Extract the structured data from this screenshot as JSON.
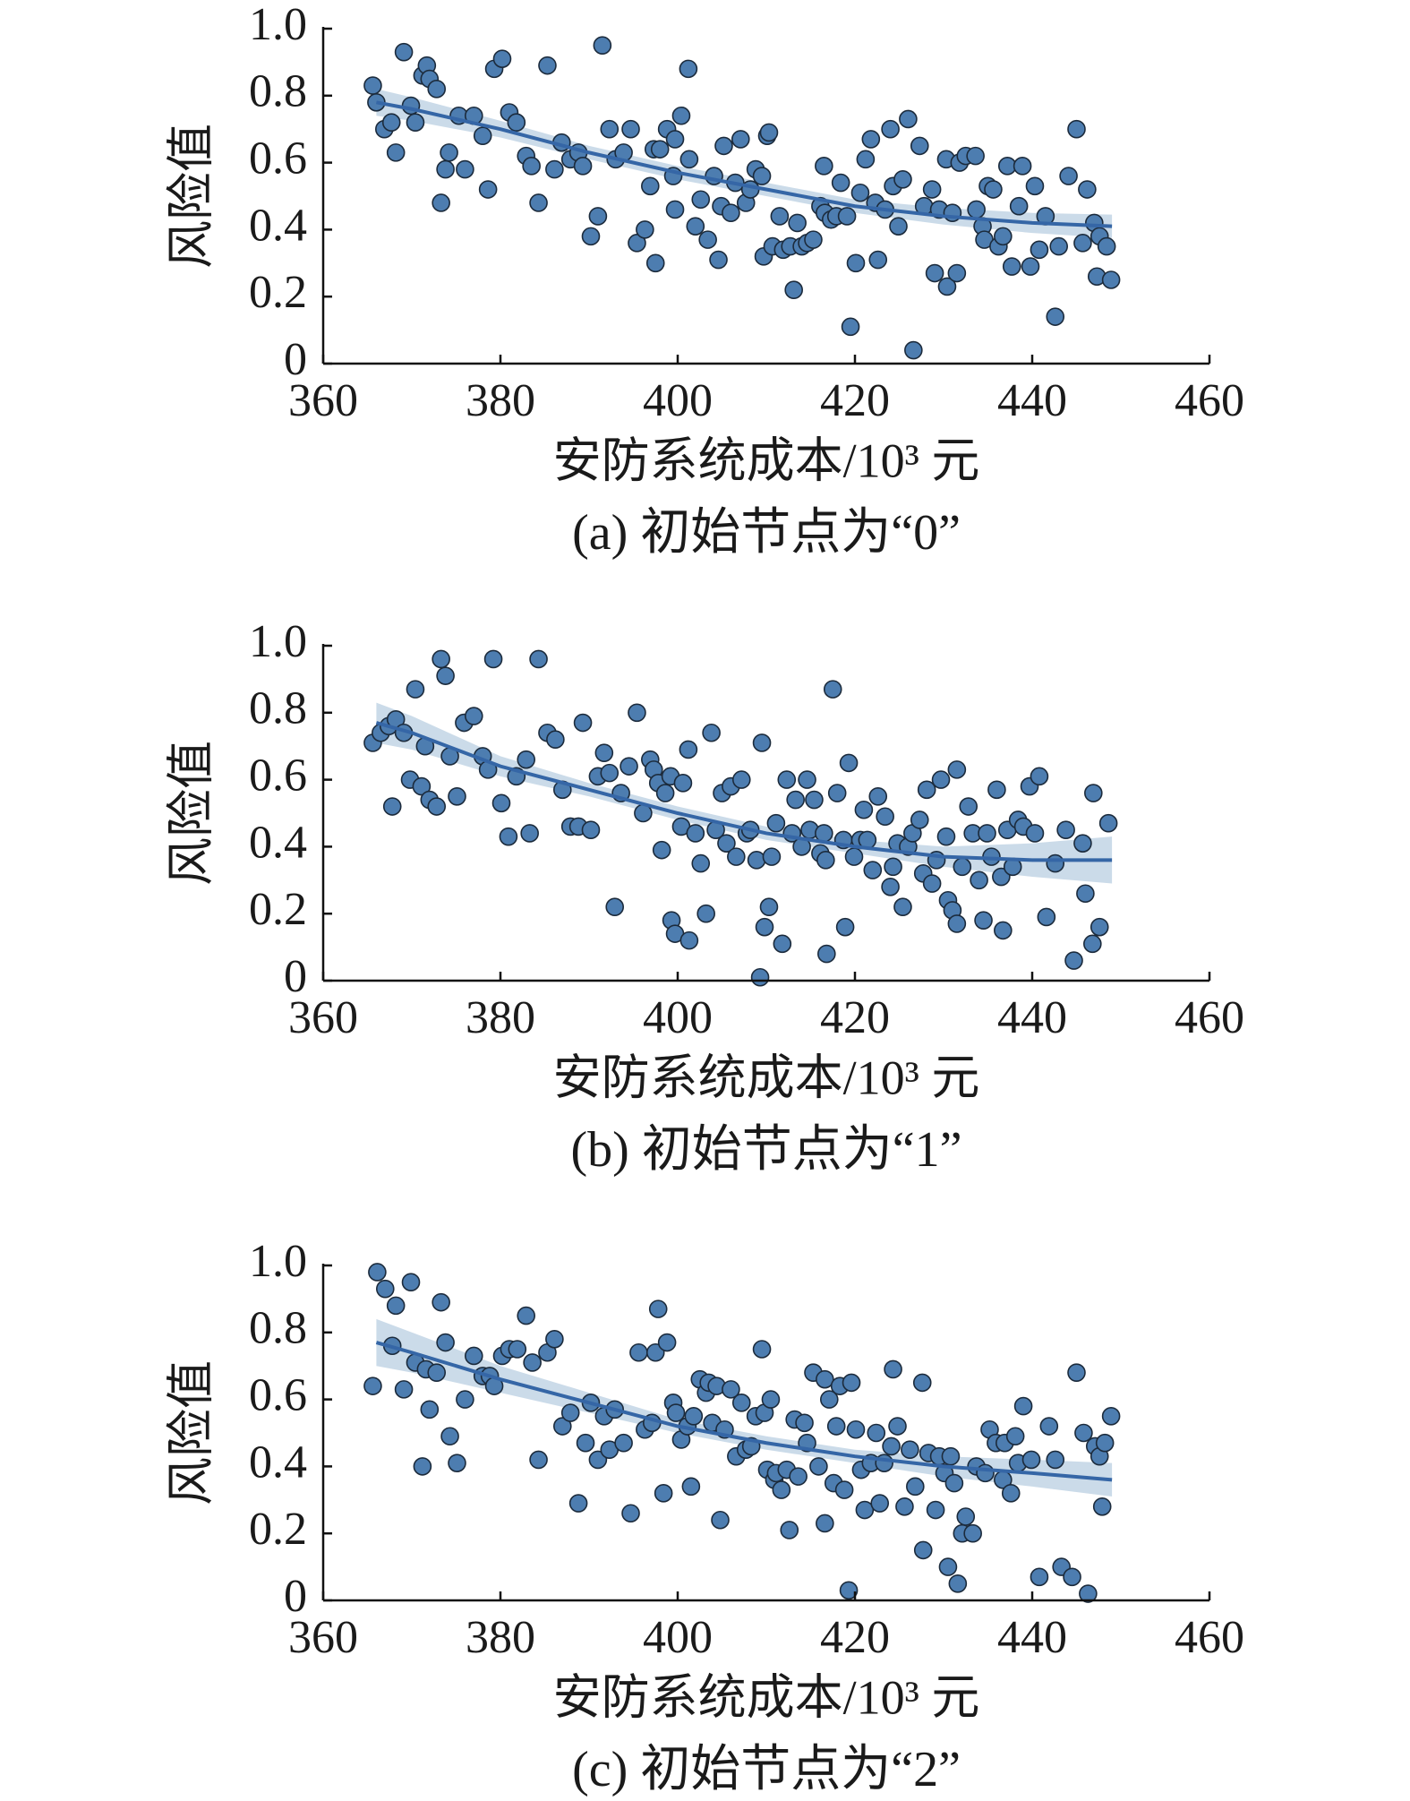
{
  "chart_data": [
    {
      "type": "scatter",
      "title": "(a) 初始节点为“0”",
      "xlabel": "安防系统成本/10³ 元",
      "ylabel": "风险值",
      "xlim": [
        360,
        460
      ],
      "ylim": [
        0,
        1
      ],
      "xticks": [
        360,
        380,
        400,
        420,
        440,
        460
      ],
      "yticks": [
        0,
        0.2,
        0.4,
        0.6,
        0.8,
        {
          "value": 1,
          "label": "1.0"
        }
      ],
      "color": "#4d7db0",
      "line_color": "#3566a6",
      "band_color": "#b9cfe2",
      "x": [
        365.6,
        366,
        366.9,
        367.7,
        368.2,
        369.1,
        369.9,
        370.4,
        371.2,
        371.7,
        372,
        372.8,
        373.3,
        373.8,
        374.2,
        375.3,
        376,
        377,
        378,
        378.6,
        379.3,
        380.2,
        381,
        381.8,
        382.9,
        383.5,
        384.3,
        385.3,
        386.1,
        386.9,
        387.9,
        388.8,
        389.3,
        390.2,
        391,
        391.5,
        392.3,
        393,
        393.9,
        394.7,
        395.4,
        396.3,
        396.9,
        397.3,
        397.5,
        398,
        398.8,
        399.5,
        399.7,
        400.4,
        399.7,
        401.2,
        401.3,
        402,
        402.6,
        403.4,
        404.1,
        404.6,
        404.9,
        405.2,
        406,
        406.5,
        407.1,
        407.7,
        408.2,
        408.8,
        409.5,
        409.7,
        410.1,
        410.7,
        410.3,
        411.5,
        411.9,
        412.7,
        413.1,
        413.5,
        414,
        414.6,
        415.3,
        416.1,
        416.5,
        416.6,
        417.3,
        417.9,
        418.4,
        419.1,
        419.5,
        420.1,
        420.6,
        421.2,
        421.8,
        422.3,
        422.6,
        423.4,
        424,
        424.3,
        424.9,
        425.4,
        426,
        426.6,
        427.3,
        427.8,
        428.7,
        429,
        429.5,
        430.3,
        430.4,
        431,
        431.5,
        431.8,
        432.5,
        433.6,
        433.7,
        434.4,
        434.6,
        435,
        435.6,
        436.2,
        436.7,
        437.2,
        437.7,
        438.5,
        438.9,
        439.8,
        440.3,
        440.8,
        441.5,
        442.6,
        443,
        444.1,
        445,
        445.7,
        446.2,
        447,
        447.3,
        447.6,
        448.4,
        448.9
      ],
      "y": [
        0.83,
        0.78,
        0.7,
        0.72,
        0.63,
        0.93,
        0.77,
        0.72,
        0.86,
        0.89,
        0.85,
        0.82,
        0.48,
        0.58,
        0.63,
        0.74,
        0.58,
        0.74,
        0.68,
        0.52,
        0.88,
        0.91,
        0.75,
        0.72,
        0.62,
        0.59,
        0.48,
        0.89,
        0.58,
        0.66,
        0.61,
        0.63,
        0.59,
        0.38,
        0.44,
        0.95,
        0.7,
        0.61,
        0.63,
        0.7,
        0.36,
        0.4,
        0.53,
        0.64,
        0.3,
        0.64,
        0.7,
        0.56,
        0.67,
        0.74,
        0.46,
        0.88,
        0.61,
        0.41,
        0.49,
        0.37,
        0.56,
        0.31,
        0.47,
        0.65,
        0.45,
        0.54,
        0.67,
        0.48,
        0.52,
        0.58,
        0.56,
        0.32,
        0.68,
        0.35,
        0.69,
        0.44,
        0.34,
        0.35,
        0.22,
        0.42,
        0.35,
        0.36,
        0.37,
        0.47,
        0.59,
        0.45,
        0.43,
        0.44,
        0.54,
        0.44,
        0.11,
        0.3,
        0.51,
        0.61,
        0.67,
        0.48,
        0.31,
        0.46,
        0.7,
        0.53,
        0.41,
        0.55,
        0.73,
        0.04,
        0.65,
        0.47,
        0.52,
        0.27,
        0.46,
        0.61,
        0.23,
        0.45,
        0.27,
        0.6,
        0.62,
        0.62,
        0.46,
        0.41,
        0.37,
        0.53,
        0.52,
        0.35,
        0.38,
        0.59,
        0.29,
        0.47,
        0.59,
        0.29,
        0.53,
        0.34,
        0.44,
        0.14,
        0.35,
        0.56,
        0.7,
        0.36,
        0.52,
        0.42,
        0.26,
        0.38,
        0.35,
        0.25
      ],
      "fit": {
        "x": [
          366,
          370,
          380,
          390,
          400,
          410,
          420,
          430,
          440,
          449
        ],
        "y": [
          0.78,
          0.76,
          0.7,
          0.63,
          0.57,
          0.52,
          0.47,
          0.44,
          0.42,
          0.41
        ],
        "upper": [
          0.82,
          0.795,
          0.725,
          0.65,
          0.59,
          0.54,
          0.49,
          0.465,
          0.45,
          0.445
        ],
        "lower": [
          0.74,
          0.725,
          0.675,
          0.61,
          0.55,
          0.5,
          0.45,
          0.415,
          0.39,
          0.375
        ]
      }
    },
    {
      "type": "scatter",
      "title": "(b) 初始节点为“1”",
      "xlabel": "安防系统成本/10³ 元",
      "ylabel": "风险值",
      "xlim": [
        360,
        460
      ],
      "ylim": [
        0,
        1
      ],
      "xticks": [
        360,
        380,
        400,
        420,
        440,
        460
      ],
      "yticks": [
        0,
        0.2,
        0.4,
        0.6,
        0.8,
        {
          "value": 1,
          "label": "1.0"
        }
      ],
      "color": "#4d7db0",
      "line_color": "#3566a6",
      "band_color": "#b9cfe2",
      "x": [
        365.6,
        366.5,
        367.4,
        367.8,
        368.2,
        369.1,
        369.8,
        370.4,
        371.1,
        371.5,
        372,
        372.8,
        373.3,
        373.8,
        374.3,
        375.1,
        375.9,
        377,
        378,
        378.6,
        379.2,
        380.1,
        380.9,
        381.8,
        382.9,
        383.3,
        384.3,
        385.3,
        386.2,
        387,
        387.9,
        388.8,
        389.3,
        390.2,
        391,
        391.7,
        392.3,
        392.9,
        393.6,
        394.5,
        395.4,
        396.1,
        396.9,
        397.3,
        397.8,
        398.2,
        398.6,
        399.2,
        399.3,
        399.7,
        400.4,
        400.6,
        401.2,
        401.3,
        402,
        402.6,
        403.2,
        403.8,
        404.3,
        405,
        405.5,
        406,
        406.6,
        407.2,
        407.8,
        408.2,
        408.9,
        409.3,
        409.5,
        409.8,
        410.3,
        410.6,
        411.1,
        411.8,
        412.3,
        412.9,
        413.3,
        414,
        414.6,
        414.9,
        415.4,
        416.1,
        416.5,
        416.8,
        416.7,
        417.5,
        418,
        418.7,
        418.9,
        419.3,
        419.9,
        420.6,
        421,
        421.4,
        422,
        422.6,
        423.4,
        424,
        424.3,
        424.8,
        425.4,
        426,
        426.5,
        427.3,
        427.7,
        428.1,
        428.7,
        429.2,
        429.7,
        430.3,
        430.5,
        431,
        431.5,
        431.5,
        432.1,
        432.8,
        433.3,
        434,
        434.5,
        434.9,
        435.4,
        436,
        436.5,
        436.7,
        437.2,
        437.8,
        438.4,
        439,
        439.7,
        440.3,
        440.8,
        441.6,
        442.6,
        443.8,
        444.7,
        445.7,
        446,
        446.8,
        446.9,
        447.6,
        448.6
      ],
      "y": [
        0.71,
        0.74,
        0.76,
        0.52,
        0.78,
        0.74,
        0.6,
        0.87,
        0.58,
        0.7,
        0.54,
        0.52,
        0.96,
        0.91,
        0.67,
        0.55,
        0.77,
        0.79,
        0.67,
        0.63,
        0.96,
        0.53,
        0.43,
        0.61,
        0.66,
        0.44,
        0.96,
        0.74,
        0.72,
        0.57,
        0.46,
        0.46,
        0.77,
        0.45,
        0.61,
        0.68,
        0.62,
        0.22,
        0.56,
        0.64,
        0.8,
        0.5,
        0.66,
        0.63,
        0.59,
        0.39,
        0.56,
        0.61,
        0.18,
        0.14,
        0.46,
        0.59,
        0.69,
        0.12,
        0.44,
        0.35,
        0.2,
        0.74,
        0.45,
        0.56,
        0.41,
        0.58,
        0.37,
        0.6,
        0.44,
        0.45,
        0.36,
        0.01,
        0.71,
        0.16,
        0.22,
        0.37,
        0.47,
        0.11,
        0.6,
        0.44,
        0.54,
        0.4,
        0.6,
        0.45,
        0.54,
        0.38,
        0.44,
        0.08,
        0.36,
        0.87,
        0.56,
        0.42,
        0.16,
        0.65,
        0.37,
        0.42,
        0.51,
        0.42,
        0.33,
        0.55,
        0.49,
        0.28,
        0.34,
        0.41,
        0.22,
        0.4,
        0.44,
        0.48,
        0.32,
        0.57,
        0.29,
        0.36,
        0.6,
        0.43,
        0.24,
        0.21,
        0.63,
        0.17,
        0.34,
        0.52,
        0.44,
        0.3,
        0.18,
        0.44,
        0.37,
        0.57,
        0.31,
        0.15,
        0.45,
        0.34,
        0.48,
        0.46,
        0.58,
        0.44,
        0.61,
        0.19,
        0.35,
        0.45,
        0.06,
        0.41,
        0.26,
        0.11,
        0.56,
        0.16,
        0.47
      ],
      "fit": {
        "x": [
          366,
          370,
          380,
          390,
          400,
          410,
          420,
          430,
          440,
          449
        ],
        "y": [
          0.77,
          0.74,
          0.64,
          0.57,
          0.5,
          0.44,
          0.4,
          0.37,
          0.36,
          0.36
        ],
        "upper": [
          0.83,
          0.79,
          0.67,
          0.59,
          0.52,
          0.46,
          0.42,
          0.4,
          0.41,
          0.43
        ],
        "lower": [
          0.71,
          0.69,
          0.61,
          0.55,
          0.48,
          0.42,
          0.38,
          0.34,
          0.31,
          0.29
        ]
      }
    },
    {
      "type": "scatter",
      "title": "(c) 初始节点为“2”",
      "xlabel": "安防系统成本/10³ 元",
      "ylabel": "风险值",
      "xlim": [
        360,
        460
      ],
      "ylim": [
        0,
        1
      ],
      "xticks": [
        360,
        380,
        400,
        420,
        440,
        460
      ],
      "yticks": [
        0,
        0.2,
        0.4,
        0.6,
        0.8,
        {
          "value": 1,
          "label": "1.0"
        }
      ],
      "color": "#4d7db0",
      "line_color": "#3566a6",
      "band_color": "#b9cfe2",
      "x": [
        365.6,
        366.1,
        367,
        367.8,
        368.2,
        369.1,
        369.9,
        370.4,
        371.2,
        371.6,
        372,
        372.8,
        373.3,
        373.8,
        374.3,
        375.1,
        376,
        377,
        378,
        378.8,
        379.3,
        380.2,
        381,
        381.9,
        382.9,
        383.6,
        384.3,
        385.3,
        386.1,
        387,
        387.9,
        388.8,
        389.6,
        390.2,
        391,
        391.7,
        392.3,
        392.9,
        393.9,
        394.7,
        395.6,
        396.3,
        397.1,
        397.5,
        397.8,
        398.4,
        398.8,
        399.5,
        399.8,
        400.4,
        401.1,
        401.5,
        401.8,
        402.5,
        403.2,
        403.5,
        403.9,
        404.4,
        404.8,
        405.3,
        406,
        406.6,
        407.2,
        407.7,
        408.3,
        408.8,
        409.5,
        409.8,
        410.1,
        410.5,
        410.9,
        411.1,
        411.7,
        412.3,
        412.6,
        413.2,
        413.6,
        414.3,
        414.6,
        415.3,
        415.9,
        416.6,
        416.6,
        417.1,
        417.6,
        417.9,
        418.3,
        418.8,
        419.3,
        419.6,
        420.1,
        420.7,
        421.1,
        421.8,
        422.4,
        422.8,
        423.3,
        424.1,
        424.3,
        424.8,
        425.6,
        426.2,
        426.8,
        427.6,
        427.7,
        428.3,
        429.1,
        429.5,
        430.1,
        430.5,
        430.8,
        431.2,
        431.6,
        432.1,
        432.5,
        433.3,
        433.7,
        434.7,
        435.2,
        435.9,
        436.7,
        436.9,
        437.6,
        438.1,
        438.4,
        439,
        439.9,
        440.8,
        441.9,
        442.6,
        443.3,
        444.5,
        445,
        445.8,
        446.3,
        447.1,
        447.6,
        447.9,
        448.2,
        448.9
      ],
      "y": [
        0.64,
        0.98,
        0.93,
        0.76,
        0.88,
        0.63,
        0.95,
        0.71,
        0.4,
        0.69,
        0.57,
        0.68,
        0.89,
        0.77,
        0.49,
        0.41,
        0.6,
        0.73,
        0.67,
        0.67,
        0.64,
        0.73,
        0.75,
        0.75,
        0.85,
        0.71,
        0.42,
        0.74,
        0.78,
        0.52,
        0.56,
        0.29,
        0.47,
        0.59,
        0.42,
        0.55,
        0.45,
        0.57,
        0.47,
        0.26,
        0.74,
        0.51,
        0.53,
        0.74,
        0.87,
        0.32,
        0.77,
        0.59,
        0.56,
        0.48,
        0.52,
        0.34,
        0.55,
        0.66,
        0.62,
        0.65,
        0.53,
        0.64,
        0.24,
        0.51,
        0.63,
        0.43,
        0.59,
        0.45,
        0.46,
        0.55,
        0.75,
        0.56,
        0.39,
        0.6,
        0.36,
        0.38,
        0.33,
        0.39,
        0.21,
        0.54,
        0.37,
        0.53,
        0.47,
        0.68,
        0.4,
        0.23,
        0.66,
        0.6,
        0.35,
        0.52,
        0.64,
        0.33,
        0.03,
        0.65,
        0.51,
        0.39,
        0.27,
        0.41,
        0.5,
        0.29,
        0.41,
        0.46,
        0.69,
        0.52,
        0.28,
        0.45,
        0.34,
        0.65,
        0.15,
        0.44,
        0.27,
        0.43,
        0.38,
        0.1,
        0.43,
        0.35,
        0.05,
        0.2,
        0.25,
        0.2,
        0.4,
        0.38,
        0.51,
        0.47,
        0.36,
        0.47,
        0.32,
        0.49,
        0.41,
        0.58,
        0.42,
        0.07,
        0.52,
        0.42,
        0.1,
        0.07,
        0.68,
        0.5,
        0.02,
        0.46,
        0.43,
        0.28,
        0.47,
        0.55
      ],
      "fit": {
        "x": [
          366,
          370,
          380,
          390,
          400,
          410,
          420,
          430,
          440,
          449
        ],
        "y": [
          0.77,
          0.74,
          0.66,
          0.59,
          0.52,
          0.47,
          0.43,
          0.4,
          0.38,
          0.36
        ],
        "upper": [
          0.84,
          0.8,
          0.7,
          0.62,
          0.54,
          0.49,
          0.45,
          0.43,
          0.42,
          0.41
        ],
        "lower": [
          0.7,
          0.68,
          0.62,
          0.56,
          0.5,
          0.45,
          0.41,
          0.37,
          0.34,
          0.31
        ]
      }
    }
  ]
}
